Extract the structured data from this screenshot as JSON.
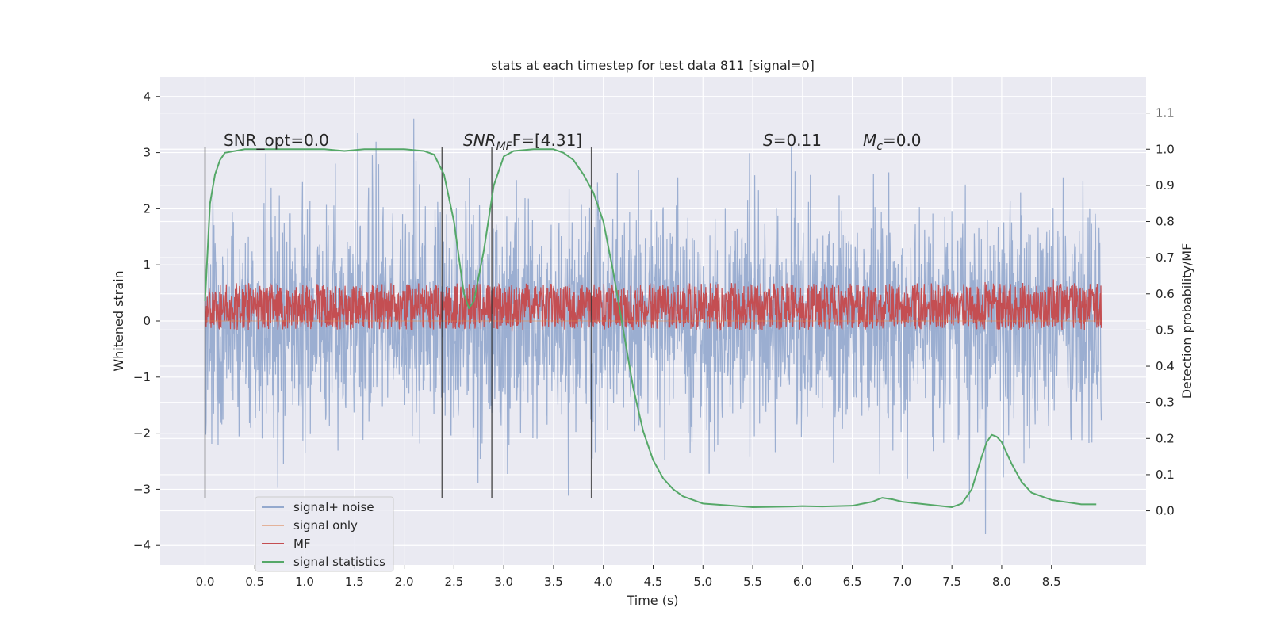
{
  "chart_data": {
    "type": "line",
    "title": "stats at each timestep for test data 811 [signal=0]",
    "xlabel": "Time (s)",
    "ylabel": "Whitened strain",
    "y2label": "Detection probability/MF",
    "xlim": [
      -0.45,
      9.45
    ],
    "ylim": [
      -4.35,
      4.35
    ],
    "y2lim": [
      -0.15,
      1.2
    ],
    "x_ticks": [
      "0.0",
      "0.5",
      "1.0",
      "1.5",
      "2.0",
      "2.5",
      "3.0",
      "3.5",
      "4.0",
      "4.5",
      "5.0",
      "5.5",
      "6.0",
      "6.5",
      "7.0",
      "7.5",
      "8.0",
      "8.5"
    ],
    "y_ticks": [
      "4",
      "3",
      "2",
      "1",
      "0",
      "−1",
      "−2",
      "−3",
      "−4"
    ],
    "y2_ticks": [
      "1.1",
      "1.0",
      "0.9",
      "0.8",
      "0.7",
      "0.6",
      "0.5",
      "0.4",
      "0.3",
      "0.2",
      "0.1",
      "0.0"
    ],
    "annotations": {
      "snr_opt": "SNR_opt=0.0",
      "snr_mf_main": "SNR",
      "snr_mf_sub": "MF",
      "snr_mf_rest": "F=[4.31]",
      "s_main": "S",
      "s_rest": "=0.11",
      "mc_main": "M",
      "mc_sub": "c",
      "mc_rest": "=0.0"
    },
    "vertical_lines_x": [
      0.0,
      2.38,
      2.88,
      3.88
    ],
    "legend": [
      "signal+ noise",
      "signal only",
      "MF",
      "signal statistics"
    ],
    "series": [
      {
        "name": "signal+ noise",
        "color": "#4c72b0",
        "x_range": [
          0.0,
          9.0
        ],
        "envelope_typical": [
          -1.2,
          1.2
        ],
        "envelope_extreme": [
          -3.8,
          4.0
        ]
      },
      {
        "name": "signal only",
        "color": "#dd8452",
        "x": [
          0.0,
          9.0
        ],
        "y": [
          0.0,
          0.0
        ]
      },
      {
        "name": "MF",
        "color": "#c44e52",
        "axis": "right",
        "x_range": [
          0.0,
          9.0
        ],
        "envelope": [
          0.5,
          0.63
        ]
      },
      {
        "name": "signal statistics",
        "color": "#55a868",
        "axis": "right",
        "x": [
          0.0,
          0.05,
          0.1,
          0.15,
          0.2,
          0.4,
          0.8,
          1.2,
          1.4,
          1.6,
          2.0,
          2.2,
          2.3,
          2.4,
          2.5,
          2.6,
          2.65,
          2.7,
          2.8,
          2.9,
          3.0,
          3.1,
          3.3,
          3.5,
          3.6,
          3.7,
          3.8,
          3.9,
          4.0,
          4.1,
          4.2,
          4.3,
          4.4,
          4.5,
          4.6,
          4.7,
          4.8,
          4.9,
          5.0,
          5.5,
          5.9,
          6.0,
          6.2,
          6.5,
          6.7,
          6.8,
          6.9,
          7.0,
          7.5,
          7.6,
          7.7,
          7.8,
          7.85,
          7.9,
          7.95,
          8.0,
          8.1,
          8.2,
          8.3,
          8.5,
          8.8,
          8.95
        ],
        "y": [
          0.58,
          0.85,
          0.93,
          0.97,
          0.99,
          1.0,
          1.0,
          1.0,
          0.995,
          1.0,
          1.0,
          0.995,
          0.985,
          0.93,
          0.8,
          0.6,
          0.56,
          0.58,
          0.72,
          0.9,
          0.98,
          0.995,
          1.0,
          1.0,
          0.99,
          0.97,
          0.93,
          0.88,
          0.8,
          0.66,
          0.5,
          0.34,
          0.22,
          0.14,
          0.09,
          0.06,
          0.04,
          0.03,
          0.02,
          0.01,
          0.012,
          0.013,
          0.012,
          0.014,
          0.025,
          0.036,
          0.032,
          0.025,
          0.01,
          0.02,
          0.06,
          0.15,
          0.19,
          0.21,
          0.205,
          0.19,
          0.13,
          0.08,
          0.05,
          0.03,
          0.018,
          0.018
        ]
      }
    ]
  }
}
